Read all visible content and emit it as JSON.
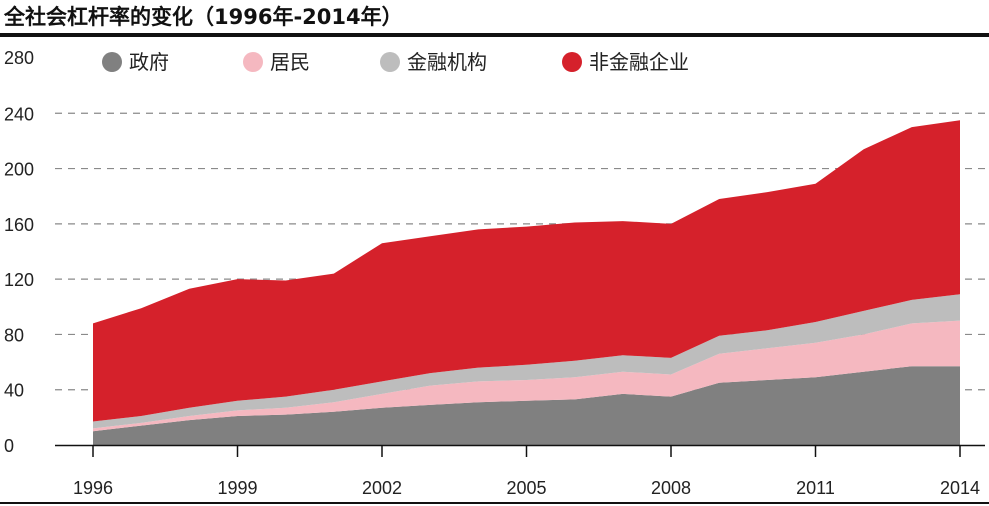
{
  "chart_data": {
    "type": "area",
    "stacked": true,
    "title": "全社会杠杆率的变化（1996年-2014年）",
    "x": [
      1996,
      1997,
      1998,
      1999,
      2000,
      2001,
      2002,
      2003,
      2004,
      2005,
      2006,
      2007,
      2008,
      2009,
      2010,
      2011,
      2012,
      2013,
      2014
    ],
    "xticks": [
      "1996",
      "1999",
      "2002",
      "2005",
      "2008",
      "2011",
      "2014"
    ],
    "ylim": [
      0,
      280
    ],
    "yticks": [
      "0",
      "40",
      "80",
      "120",
      "160",
      "200",
      "240",
      "280"
    ],
    "grid": "dashed horizontal",
    "legend_position": "top",
    "series": [
      {
        "name": "政府",
        "color": "#808080",
        "values": [
          10,
          14,
          18,
          21,
          22,
          24,
          27,
          29,
          31,
          32,
          33,
          37,
          35,
          45,
          47,
          49,
          53,
          57,
          57
        ]
      },
      {
        "name": "居民",
        "color": "#f5b8c0",
        "values": [
          2,
          2,
          3,
          4,
          5,
          7,
          10,
          14,
          15,
          15,
          16,
          16,
          16,
          21,
          23,
          25,
          27,
          31,
          33
        ]
      },
      {
        "name": "金融机构",
        "color": "#bdbdbd",
        "values": [
          5,
          5,
          6,
          7,
          8,
          9,
          9,
          9,
          10,
          11,
          12,
          12,
          12,
          13,
          13,
          15,
          17,
          17,
          19
        ]
      },
      {
        "name": "非金融企业",
        "color": "#d5212b",
        "values": [
          71,
          78,
          86,
          88,
          84,
          84,
          100,
          99,
          100,
          100,
          100,
          97,
          97,
          99,
          100,
          100,
          117,
          125,
          126
        ]
      }
    ]
  }
}
